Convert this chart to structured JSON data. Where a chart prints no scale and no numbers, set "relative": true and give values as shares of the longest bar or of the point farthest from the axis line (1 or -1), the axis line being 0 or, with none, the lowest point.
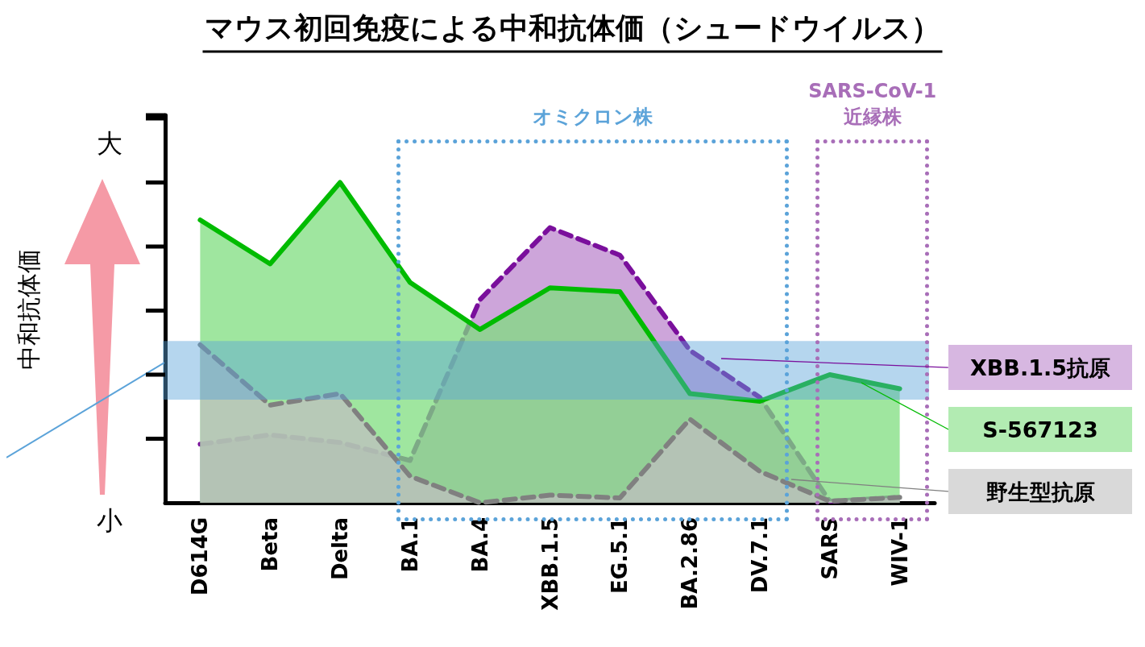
{
  "chart_data": {
    "type": "area",
    "title": "マウス初回免疫による中和抗体価（シュードウイルス）",
    "ylabel": "中和抗体価",
    "relative": true,
    "categories": [
      "D614G",
      "Beta",
      "Delta",
      "BA.1",
      "BA.4",
      "XBB.1.5",
      "EG.5.1",
      "BA.2.86",
      "DV.7.1",
      "SARS",
      "WIV-1"
    ],
    "series": [
      {
        "name": "XBB.1.5抗原",
        "color": "#7a0f9c",
        "line_style": "dashed",
        "values": [
          0.183,
          0.212,
          0.188,
          0.132,
          0.634,
          0.859,
          0.773,
          0.476,
          0.329,
          0.005,
          0.017
        ]
      },
      {
        "name": "S-567123",
        "color": "#00bb00",
        "line_style": "solid",
        "values": [
          0.883,
          0.746,
          1,
          0.688,
          0.541,
          0.671,
          0.659,
          0.341,
          0.317,
          0.4,
          0.356
        ]
      },
      {
        "name": "野生型抗原",
        "color": "#808080",
        "line_style": "dashed",
        "values": [
          0.493,
          0.305,
          0.341,
          0.083,
          0,
          0.024,
          0.015,
          0.261,
          0.098,
          0.005,
          0.017
        ]
      }
    ],
    "bands": [
      {
        "axis": "y",
        "from": 0.322,
        "to": 0.505,
        "color": "#5ba3d9"
      }
    ],
    "annotations": [
      "大",
      "小",
      "オミクロン株",
      "SARS-CoV-1\n近縁株"
    ],
    "legend": "right"
  }
}
